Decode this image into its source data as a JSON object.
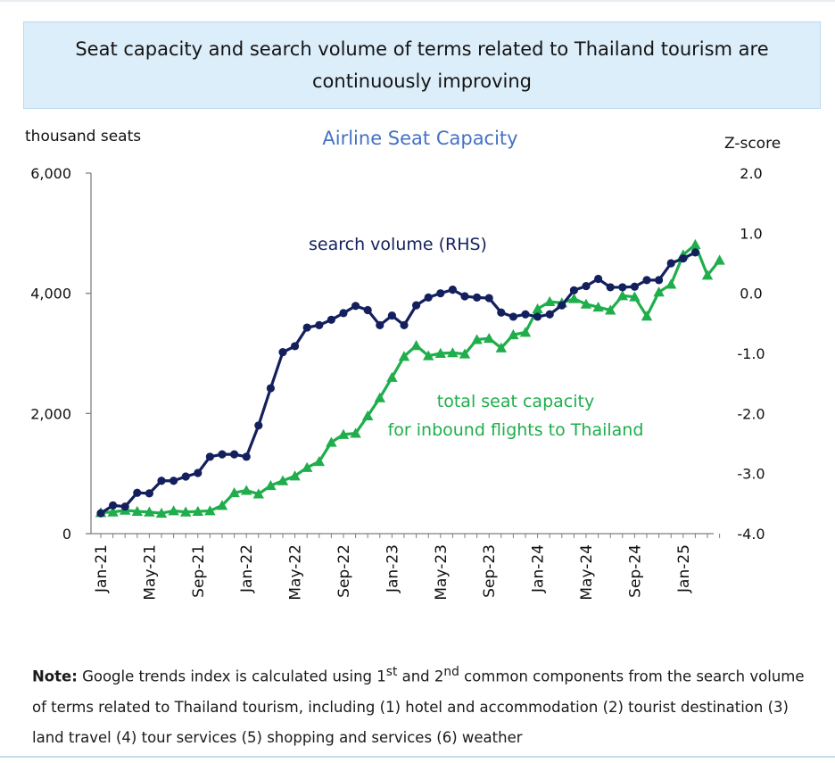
{
  "header": {
    "title": "Seat capacity and search volume of terms related to Thailand tourism are continuously improving"
  },
  "chart_data": {
    "type": "line",
    "title": "Airline Seat Capacity",
    "y_left_label": "thousand seats",
    "y_right_label": "Z-score",
    "ylim_left": [
      0,
      6000
    ],
    "ylim_right": [
      -4.0,
      2.0
    ],
    "y_left_ticks": [
      "0",
      "2,000",
      "4,000",
      "6,000"
    ],
    "y_right_ticks": [
      "-4.0",
      "-3.0",
      "-2.0",
      "-1.0",
      "0.0",
      "1.0",
      "2.0"
    ],
    "x_ticks": [
      "Jan-21",
      "May-21",
      "Sep-21",
      "Jan-22",
      "May-22",
      "Sep-22",
      "Jan-23",
      "May-23",
      "Sep-23",
      "Jan-24",
      "May-24",
      "Sep-24",
      "Jan-25"
    ],
    "x_tick_months": [
      0,
      4,
      8,
      12,
      16,
      20,
      24,
      28,
      32,
      36,
      40,
      44,
      48
    ],
    "grid": false,
    "legend": "inline labels",
    "series": [
      {
        "name": "search volume (RHS)",
        "axis": "right",
        "color": "#14205e",
        "marker": "circle",
        "values": [
          -3.66,
          -3.53,
          -3.55,
          -3.32,
          -3.33,
          -3.12,
          -3.12,
          -3.05,
          -2.99,
          -2.72,
          -2.68,
          -2.68,
          -2.72,
          -2.2,
          -1.58,
          -0.98,
          -0.88,
          -0.57,
          -0.53,
          -0.44,
          -0.33,
          -0.21,
          -0.28,
          -0.53,
          -0.37,
          -0.53,
          -0.2,
          -0.07,
          0.0,
          0.06,
          -0.05,
          -0.07,
          -0.08,
          -0.32,
          -0.39,
          -0.35,
          -0.39,
          -0.35,
          -0.2,
          0.05,
          0.12,
          0.24,
          0.1,
          0.1,
          0.11,
          0.22,
          0.22,
          0.5,
          0.58,
          0.68
        ]
      },
      {
        "name": "total seat capacity for inbound flights to Thailand",
        "axis": "left",
        "color": "#1fae4b",
        "marker": "triangle",
        "values": [
          350,
          360,
          390,
          370,
          360,
          340,
          380,
          360,
          370,
          380,
          470,
          680,
          720,
          660,
          800,
          880,
          960,
          1100,
          1200,
          1520,
          1650,
          1670,
          1960,
          2260,
          2600,
          2950,
          3130,
          2960,
          3000,
          3010,
          2990,
          3230,
          3250,
          3090,
          3310,
          3350,
          3740,
          3860,
          3840,
          3910,
          3820,
          3770,
          3720,
          3960,
          3940,
          3620,
          4020,
          4150,
          4640,
          4810,
          4300,
          4550
        ]
      }
    ]
  },
  "note": {
    "label": "Note:",
    "text_1": " Google trends index is calculated using 1",
    "sup_1": "st",
    "text_2": " and 2",
    "sup_2": "nd",
    "text_3": " common components from the search volume of terms related to Thailand tourism, including (1) hotel and accommodation (2) tourist destination (3) land travel (4) tour services (5) shopping and services (6) weather"
  }
}
